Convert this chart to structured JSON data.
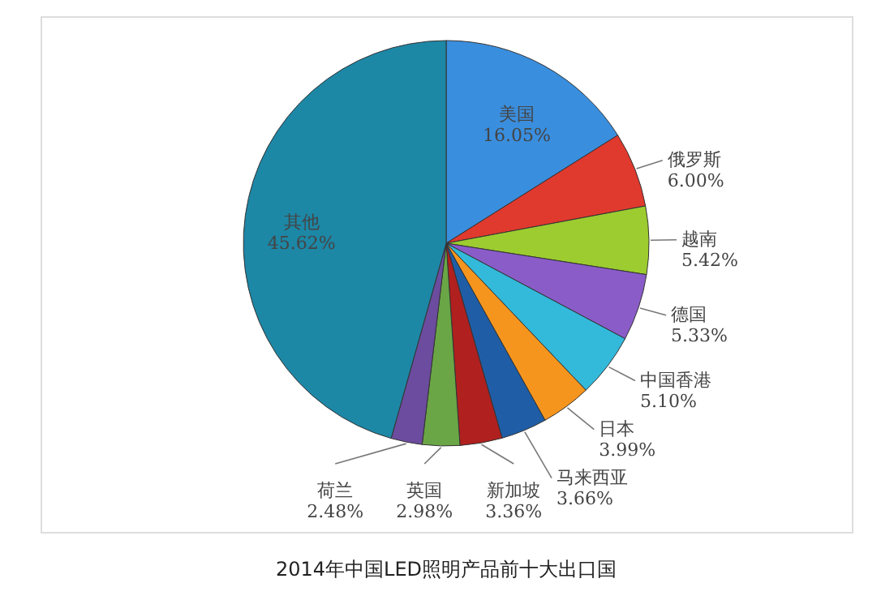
{
  "chart_data": {
    "type": "pie",
    "title": "2014年中国LED照明产品前十大出口国",
    "categories": [
      "美国",
      "俄罗斯",
      "越南",
      "德国",
      "中国香港",
      "日本",
      "马来西亚",
      "新加坡",
      "英国",
      "荷兰",
      "其他"
    ],
    "values": [
      16.05,
      6.0,
      5.42,
      5.33,
      5.1,
      3.99,
      3.66,
      3.36,
      2.98,
      2.48,
      45.62
    ],
    "value_labels": [
      "16.05%",
      "6.00%",
      "5.42%",
      "5.33%",
      "5.10%",
      "3.99%",
      "3.66%",
      "3.36%",
      "2.98%",
      "2.48%",
      "45.62%"
    ],
    "colors": [
      "#3a8ede",
      "#e0392e",
      "#9ccc2f",
      "#8a5cc8",
      "#33b9da",
      "#f5951e",
      "#1f5ea6",
      "#b0201f",
      "#6aa646",
      "#6c4c9e",
      "#1d87a6"
    ],
    "legend": false
  }
}
